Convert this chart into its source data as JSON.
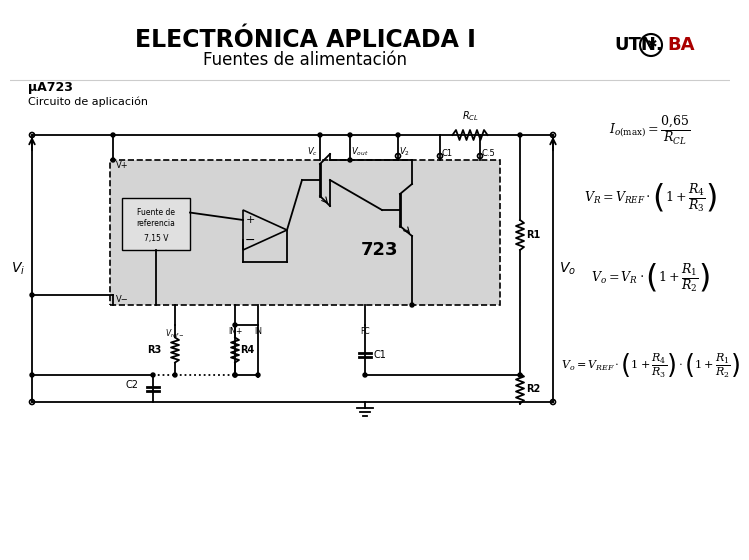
{
  "title": "ELECTRÓNICA APLICADA I",
  "subtitle": "Fuentes de alimentación",
  "chip_label": "μA723",
  "circuit_label": "Circuito de aplicación",
  "bg_color": "#ffffff",
  "title_color": "#000000",
  "subtitle_color": "#000000",
  "utn_color": "#aa0000",
  "formula1": "$I_{o(\\max)} = \\dfrac{0{,}65}{R_{CL}}$",
  "formula2": "$V_R = V_{REF} \\cdot \\left(1 + \\dfrac{R_4}{R_3}\\right)$",
  "formula3": "$V_o = V_R \\cdot \\left(1 + \\dfrac{R_1}{R_2}\\right)$",
  "formula4": "$V_o = V_{REF} \\cdot \\left(1 + \\dfrac{R_4}{R_3}\\right) \\cdot \\left(1 + \\dfrac{R_1}{R_2}\\right)$",
  "circuit_bg": "#d4d4d4",
  "lw": 1.3
}
